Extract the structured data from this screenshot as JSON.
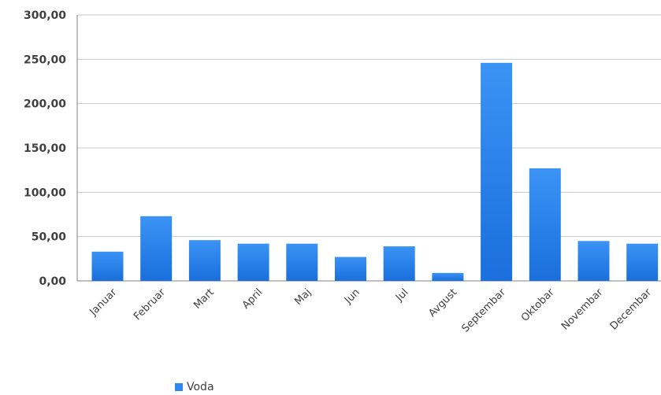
{
  "chart_data": {
    "type": "bar",
    "categories": [
      "Januar",
      "Februar",
      "Mart",
      "April",
      "Maj",
      "Jun",
      "Jul",
      "Avgust",
      "Septembar",
      "Oktobar",
      "Novembar",
      "Decembar"
    ],
    "series": [
      {
        "name": "Voda",
        "values": [
          33,
          73,
          46,
          42,
          42,
          27,
          39,
          9,
          246,
          127,
          45,
          42
        ]
      }
    ],
    "ylim": [
      0,
      300
    ],
    "yticks": [
      0,
      50,
      100,
      150,
      200,
      250,
      300
    ],
    "ytick_labels": [
      "0,00",
      "50,00",
      "100,00",
      "150,00",
      "200,00",
      "250,00",
      "300,00"
    ],
    "grid": true,
    "legend_position": "bottom-left",
    "colors": {
      "bar_top": "#3b93f5",
      "bar_bottom": "#1a6fdc",
      "grid": "#c8c8c8",
      "axis": "#868686",
      "text": "#404040"
    }
  }
}
